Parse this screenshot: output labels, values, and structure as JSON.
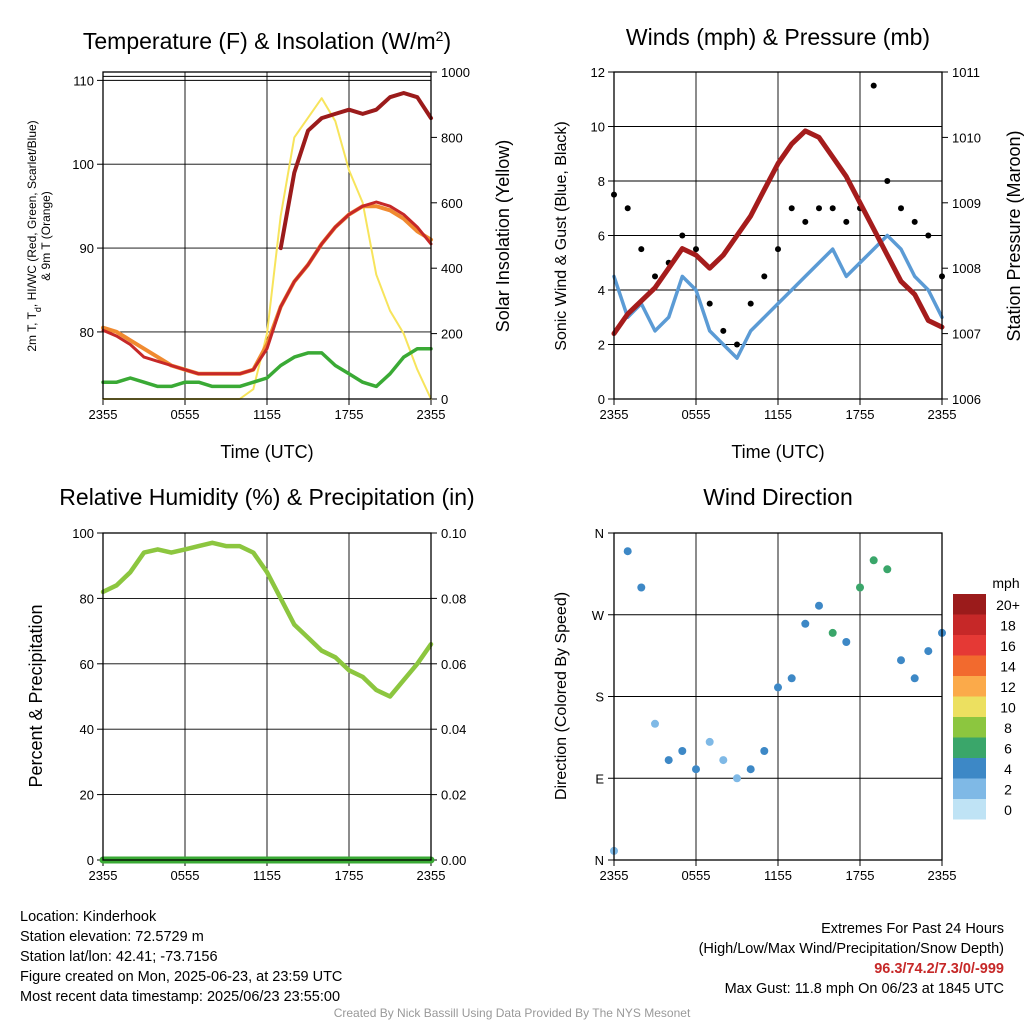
{
  "ticks_time": [
    "2355",
    "0555",
    "1155",
    "1755",
    "2355"
  ],
  "xlabel_time": "Time (UTC)",
  "colors": {
    "temp": "#c62828",
    "dewpoint": "#3aaa35",
    "heat_index": "#9b1b1b",
    "temp9m": "#f08a30",
    "solar": "#f7e45c",
    "wind": "#5b9bd5",
    "gust": "#000000",
    "pressure": "#a51c1c",
    "rh": "#8cc63f",
    "precip": "#3aaa35"
  },
  "panel_temp": {
    "title_main": "Temperature (F) & Insolation (W/m",
    "title_sup": "2",
    "title_end": ")",
    "ylabel_l1": "2m T, T",
    "ylabel_sub": "d",
    "ylabel_l2": ", HI/WC (Red, Green, Scarlet/Blue)",
    "ylabel_l3": "& 9m T (Orange)",
    "ylabel_right": "Solar Insolation (Yellow)",
    "yticks_left": [
      "80",
      "90",
      "100",
      "110"
    ],
    "yticks_right": [
      "0",
      "200",
      "400",
      "600",
      "800",
      "1000"
    ]
  },
  "panel_wind": {
    "title": "Winds (mph) & Pressure (mb)",
    "ylabel_left": "Sonic Wind & Gust (Blue, Black)",
    "ylabel_right": "Station Pressure (Maroon)",
    "yticks_left": [
      "0",
      "2",
      "4",
      "6",
      "8",
      "10",
      "12"
    ],
    "yticks_right": [
      "1006",
      "1007",
      "1008",
      "1009",
      "1010",
      "1011"
    ]
  },
  "panel_rh": {
    "title": "Relative Humidity (%) & Precipitation (in)",
    "ylabel": "Percent & Precipitation",
    "yticks_left": [
      "0",
      "20",
      "40",
      "60",
      "80",
      "100"
    ],
    "yticks_right": [
      "0.00",
      "0.02",
      "0.04",
      "0.06",
      "0.08",
      "0.10"
    ]
  },
  "panel_dir": {
    "title": "Wind Direction",
    "ylabel": "Direction (Colored By Speed)",
    "yticks": [
      "N",
      "E",
      "S",
      "W",
      "N"
    ],
    "legend_title": "mph",
    "legend_labels": [
      "20+",
      "18",
      "16",
      "14",
      "12",
      "10",
      "8",
      "6",
      "4",
      "2",
      "0"
    ],
    "legend_colors": [
      "#9b1b1b",
      "#c62828",
      "#e53935",
      "#f26a2e",
      "#fbaa4a",
      "#ece060",
      "#8cc63f",
      "#3aa66a",
      "#3d88c6",
      "#7fb9e6",
      "#bfe3f5"
    ]
  },
  "chart_data": [
    {
      "type": "line",
      "title": "Temperature (F) & Insolation (W/m2)",
      "xlabel": "Time (UTC)",
      "ylabel": "2m T, Td, HI/WC (Red, Green, Scarlet/Blue) & 9m T (Orange)",
      "ylabel_right": "Solar Insolation (Yellow)",
      "x": [
        0,
        1,
        2,
        3,
        4,
        5,
        6,
        7,
        8,
        9,
        10,
        11,
        12,
        13,
        14,
        15,
        16,
        17,
        18,
        19,
        20,
        21,
        22,
        23,
        24
      ],
      "ylim": [
        72,
        111
      ],
      "ylim_right": [
        0,
        1000
      ],
      "series": [
        {
          "values": [
            80.2,
            79.5,
            78.5,
            77.0,
            76.5,
            76.0,
            75.5,
            75.0,
            75.0,
            75.0,
            75.0,
            75.5,
            78.0,
            83.0,
            86.0,
            88.0,
            90.5,
            92.5,
            94.0,
            95.0,
            95.5,
            95.0,
            94.0,
            92.5,
            90.5
          ]
        },
        {
          "values": [
            80.5,
            80.0,
            79.0,
            78.0,
            77.0,
            76.0,
            75.5,
            75.0,
            75.0,
            75.0,
            75.0,
            75.5,
            78.5,
            83.0,
            86.0,
            88.0,
            90.5,
            92.5,
            94.0,
            95.0,
            95.0,
            94.5,
            93.5,
            92.0,
            91.0
          ]
        },
        {
          "values": [
            74.0,
            74.0,
            74.5,
            74.0,
            73.5,
            73.5,
            74.0,
            74.0,
            73.5,
            73.5,
            73.5,
            74.0,
            74.5,
            76.0,
            77.0,
            77.5,
            77.5,
            76.0,
            75.0,
            74.0,
            73.5,
            75.0,
            77.0,
            78.0,
            78.0
          ]
        },
        {
          "values": [
            null,
            null,
            null,
            null,
            null,
            null,
            null,
            null,
            null,
            null,
            null,
            null,
            null,
            90.0,
            99.0,
            104.0,
            105.5,
            106.0,
            106.5,
            106.0,
            106.5,
            108.0,
            108.5,
            108.0,
            105.5
          ]
        },
        {
          "values": [
            0,
            0,
            0,
            0,
            0,
            0,
            0,
            0,
            0,
            0,
            0,
            30,
            200,
            560,
            800,
            860,
            920,
            850,
            700,
            600,
            380,
            270,
            200,
            90,
            0
          ]
        }
      ]
    },
    {
      "type": "line",
      "title": "Winds (mph) & Pressure (mb)",
      "xlabel": "Time (UTC)",
      "ylabel": "Sonic Wind & Gust (Blue, Black)",
      "ylabel_right": "Station Pressure (Maroon)",
      "x": [
        0,
        1,
        2,
        3,
        4,
        5,
        6,
        7,
        8,
        9,
        10,
        11,
        12,
        13,
        14,
        15,
        16,
        17,
        18,
        19,
        20,
        21,
        22,
        23,
        24
      ],
      "ylim": [
        0,
        12
      ],
      "ylim_right": [
        1006,
        1011
      ],
      "series": [
        {
          "values": [
            4.5,
            3.0,
            3.5,
            2.5,
            3.0,
            4.5,
            4.0,
            2.5,
            2.0,
            1.5,
            2.5,
            3.0,
            3.5,
            4.0,
            4.5,
            5.0,
            5.5,
            4.5,
            5.0,
            5.5,
            6.0,
            5.5,
            4.5,
            4.0,
            3.0
          ]
        },
        {
          "values": [
            7.5,
            7.0,
            5.5,
            4.5,
            5.0,
            6.0,
            5.5,
            3.5,
            2.5,
            2.0,
            3.5,
            4.5,
            5.5,
            7.0,
            6.5,
            7.0,
            7.0,
            6.5,
            7.0,
            11.5,
            8.0,
            7.0,
            6.5,
            6.0,
            4.5
          ]
        },
        {
          "values": [
            1007.0,
            1007.3,
            1007.5,
            1007.7,
            1008.0,
            1008.3,
            1008.2,
            1008.0,
            1008.2,
            1008.5,
            1008.8,
            1009.2,
            1009.6,
            1009.9,
            1010.1,
            1010.0,
            1009.7,
            1009.4,
            1009.0,
            1008.6,
            1008.2,
            1007.8,
            1007.6,
            1007.2,
            1007.1
          ]
        }
      ]
    },
    {
      "type": "line",
      "title": "Relative Humidity (%) & Precipitation (in)",
      "xlabel": "",
      "ylabel": "Percent & Precipitation",
      "x": [
        0,
        1,
        2,
        3,
        4,
        5,
        6,
        7,
        8,
        9,
        10,
        11,
        12,
        13,
        14,
        15,
        16,
        17,
        18,
        19,
        20,
        21,
        22,
        23,
        24
      ],
      "ylim": [
        0,
        100
      ],
      "ylim_right": [
        0,
        0.1
      ],
      "series": [
        {
          "values": [
            82,
            84,
            88,
            94,
            95,
            94,
            95,
            96,
            97,
            96,
            96,
            94,
            88,
            80,
            72,
            68,
            64,
            62,
            58,
            56,
            52,
            50,
            55,
            60,
            66
          ]
        },
        {
          "values": [
            0,
            0,
            0,
            0,
            0,
            0,
            0,
            0,
            0,
            0,
            0,
            0,
            0,
            0,
            0,
            0,
            0,
            0,
            0,
            0,
            0,
            0,
            0,
            0,
            0
          ]
        }
      ]
    },
    {
      "type": "scatter",
      "title": "Wind Direction",
      "xlabel": "",
      "ylabel": "Direction (Colored By Speed)",
      "yticks": [
        "N",
        "E",
        "S",
        "W",
        "N"
      ],
      "x": [
        0,
        1,
        2,
        3,
        4,
        5,
        6,
        7,
        8,
        9,
        10,
        11,
        12,
        13,
        14,
        15,
        16,
        17,
        18,
        19,
        20,
        21,
        22,
        23,
        24
      ],
      "series": [
        {
          "values": [
            10,
            340,
            300,
            150,
            110,
            120,
            100,
            130,
            110,
            90,
            100,
            120,
            190,
            200,
            260,
            280,
            250,
            240,
            300,
            330,
            320,
            220,
            200,
            230,
            250
          ]
        },
        {
          "values": [
            1,
            4,
            3,
            2,
            3,
            4,
            3,
            2,
            2,
            1,
            3,
            3,
            4,
            4,
            3,
            4,
            5,
            4,
            5,
            6,
            5,
            4,
            4,
            4,
            3
          ]
        }
      ]
    }
  ],
  "info_left": [
    "Location: Kinderhook",
    "Station elevation: 72.5729 m",
    "Station lat/lon: 42.41; -73.7156",
    "Figure created on Mon, 2025-06-23, at 23:59 UTC",
    "Most recent data timestamp: 2025/06/23 23:55:00"
  ],
  "info_right": {
    "line1": "Extremes For Past 24 Hours",
    "line2": "(High/Low/Max Wind/Precipitation/Snow Depth)",
    "values": "96.3/74.2/7.3/0/-999",
    "gust": "Max Gust: 11.8 mph On 06/23 at 1845 UTC"
  },
  "credit": "Created By Nick Bassill Using Data Provided By The NYS Mesonet"
}
